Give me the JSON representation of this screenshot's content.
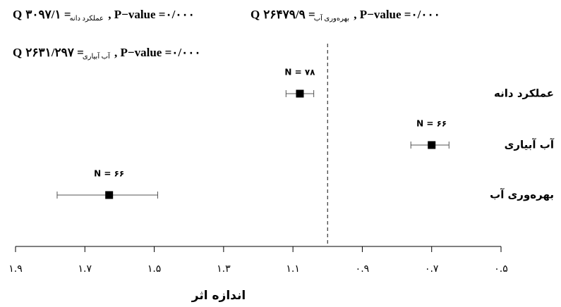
{
  "chart_data": {
    "type": "forest",
    "annotations": [
      {
        "symbol": "Q",
        "subscript": "عملکرد دانه",
        "text": "= ۳۰۹۷/۱ , P−value =۰/۰۰۰"
      },
      {
        "symbol": "Q",
        "subscript": "بهره‌وری آب",
        "text": "= ۲۶۴۷۹/۹ , P−value =۰/۰۰۰"
      },
      {
        "symbol": "Q",
        "subscript": "آب آبیاری",
        "text": "= ۲۶۳۱/۲۹۷ , P−value =۰/۰۰۰"
      }
    ],
    "categories": [
      "عملکرد دانه",
      "آب آبیاری",
      "بهره‌وری آب"
    ],
    "values": [
      1.08,
      0.7,
      1.63
    ],
    "lower": [
      1.04,
      0.65,
      1.49
    ],
    "upper": [
      1.12,
      0.76,
      1.78
    ],
    "n_labels": [
      "N = ۷۸",
      "N = ۶۶",
      "N = ۶۶"
    ],
    "x_label": "اندازه اثر",
    "xlim": [
      1.9,
      0.5
    ],
    "xticks": [
      {
        "value": 1.9,
        "label": "۱.۹"
      },
      {
        "value": 1.7,
        "label": "۱.۷"
      },
      {
        "value": 1.5,
        "label": "۱.۵"
      },
      {
        "value": 1.3,
        "label": "۱.۳"
      },
      {
        "value": 1.1,
        "label": "۱.۱"
      },
      {
        "value": 0.9,
        "label": "۰.۹"
      },
      {
        "value": 0.7,
        "label": "۰.۷"
      },
      {
        "value": 0.5,
        "label": "۰.۵"
      }
    ],
    "reference_line": 1.0,
    "color": "#000000"
  }
}
